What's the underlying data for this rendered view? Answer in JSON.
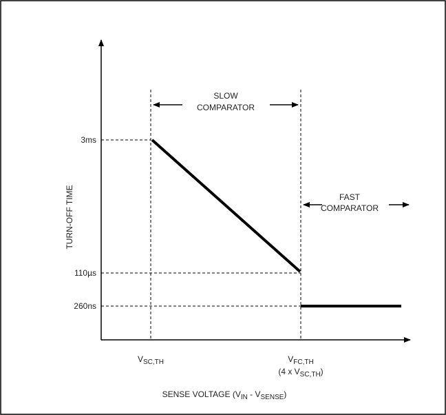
{
  "chart_data": {
    "type": "line",
    "ylabel": "TURN-OFF TIME",
    "xlabel": {
      "prefix": "SENSE VOLTAGE (V",
      "sub1": "IN",
      "mid": " - V",
      "sub2": "SENSE",
      "suffix": ")"
    },
    "y_ticks": [
      "3ms",
      "110µs",
      "260ns"
    ],
    "x_ticks": [
      {
        "main": "V",
        "sub": "SC,TH"
      },
      {
        "main": "V",
        "sub": "FC,TH",
        "line2_prefix": "(4 x V",
        "line2_sub": "SC,TH",
        "line2_suffix": ")"
      }
    ],
    "regions": [
      {
        "line1": "SLOW",
        "line2": "COMPARATOR"
      },
      {
        "line1": "FAST",
        "line2": "COMPARATOR"
      }
    ],
    "series": [
      {
        "points": [
          [
            "VSC,TH",
            "3ms"
          ],
          [
            "VFC,TH",
            "110µs"
          ]
        ]
      },
      {
        "points": [
          [
            "VFC,TH",
            "260ns"
          ],
          [
            "end",
            "260ns"
          ]
        ]
      }
    ],
    "grid": false
  },
  "colors": {
    "line": "#000000",
    "frame": "#000000",
    "text": "#222222"
  }
}
